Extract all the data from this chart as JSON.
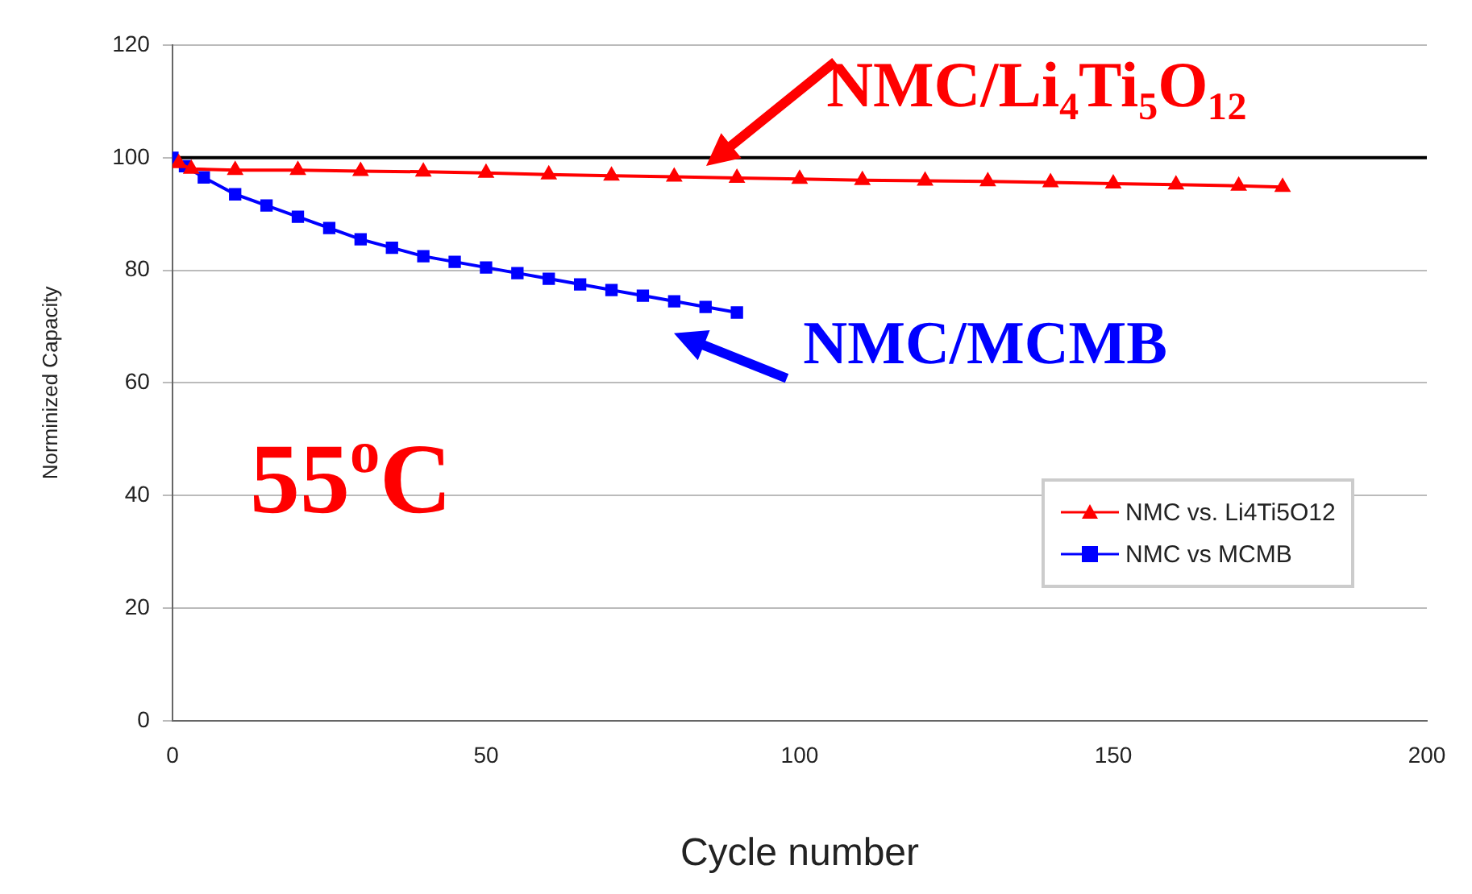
{
  "chart_data": {
    "type": "line",
    "xlabel": "Cycle number",
    "ylabel": "Norminized Capacity",
    "xlim": [
      0,
      200
    ],
    "xticks": [
      0,
      50,
      100,
      150,
      200
    ],
    "ylim": [
      0,
      120
    ],
    "yticks": [
      0,
      20,
      40,
      60,
      80,
      100,
      120
    ],
    "grid": "y",
    "legend": "bottom right",
    "series": [
      {
        "name": "NMC vs. Li4Ti5O12",
        "color": "#ff0000",
        "marker": "triangle",
        "x": [
          1,
          3,
          10,
          20,
          30,
          40,
          50,
          60,
          70,
          80,
          90,
          100,
          110,
          120,
          130,
          140,
          150,
          160,
          170,
          177
        ],
        "values": [
          99,
          98,
          97.8,
          97.8,
          97.6,
          97.5,
          97.3,
          97,
          96.8,
          96.6,
          96.4,
          96.2,
          96,
          95.9,
          95.8,
          95.6,
          95.4,
          95.2,
          95,
          94.8
        ]
      },
      {
        "name": "NMC vs MCMB",
        "color": "#0000ff",
        "marker": "square",
        "x": [
          0,
          2,
          5,
          10,
          15,
          20,
          25,
          30,
          35,
          40,
          45,
          50,
          55,
          60,
          65,
          70,
          75,
          80,
          85,
          90
        ],
        "values": [
          100,
          98.5,
          96.5,
          93.5,
          91.5,
          89.5,
          87.5,
          85.5,
          84,
          82.5,
          81.5,
          80.5,
          79.5,
          78.5,
          77.5,
          76.5,
          75.5,
          74.5,
          73.5,
          72.5
        ]
      }
    ],
    "ref_lines": [
      {
        "axis": "y",
        "value": 100,
        "color": "#000000"
      }
    ],
    "annotations": [
      {
        "text": "NMC/Li₄Ti₅O₁₂",
        "x": 85,
        "y": 97.5
      },
      {
        "text": "NMC/MCMB",
        "x": 80,
        "y": 75
      },
      "55$^{o}$C"
    ]
  }
}
